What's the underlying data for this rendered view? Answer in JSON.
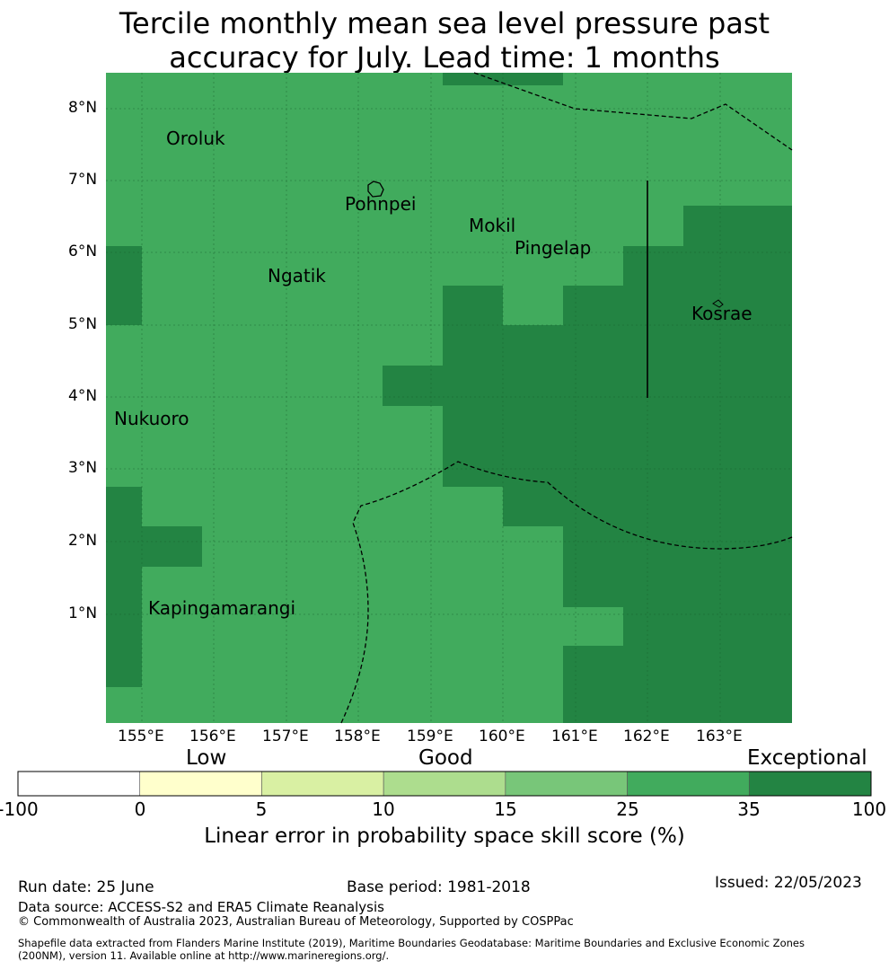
{
  "title_line1": "Tercile monthly mean sea level pressure past",
  "title_line2": "accuracy for July. Lead time: 1 months",
  "lat_labels": [
    "8°N",
    "7°N",
    "6°N",
    "5°N",
    "4°N",
    "3°N",
    "2°N",
    "1°N"
  ],
  "lon_labels": [
    "155°E",
    "156°E",
    "157°E",
    "158°E",
    "159°E",
    "160°E",
    "161°E",
    "162°E",
    "163°E"
  ],
  "places": [
    "Oroluk",
    "Pohnpei",
    "Mokil",
    "Pingelap",
    "Ngatik",
    "Kosrae",
    "Nukuoro",
    "Kapingamarangi"
  ],
  "colorbar": {
    "categories": [
      "Low",
      "Good",
      "Exceptional"
    ],
    "ticks": [
      "-100",
      "0",
      "5",
      "10",
      "15",
      "25",
      "35",
      "100"
    ],
    "colors": [
      "#ffffff",
      "#ffffcc",
      "#d9f0a3",
      "#addd8e",
      "#78c679",
      "#41ab5d",
      "#238443"
    ],
    "label": "Linear error in probability space skill score (%)"
  },
  "footer": {
    "run_date": "Run date: 25 June",
    "base_period": "Base period: 1981-2018",
    "issued": "Issued: 22/05/2023",
    "data_source": "Data source: ACCESS-S2 and ERA5 Climate Reanalysis",
    "copyright": "© Commonwealth of Australia 2023, Australian Bureau of Meteorology, Supported by COSPPac",
    "shapefile_1": "Shapefile data extracted from Flanders Marine Institute (2019), Maritime Boundaries Geodatabase: Maritime Boundaries and Exclusive Economic Zones",
    "shapefile_2": "(200NM), version 11. Available online at http://www.marineregions.org/."
  }
}
